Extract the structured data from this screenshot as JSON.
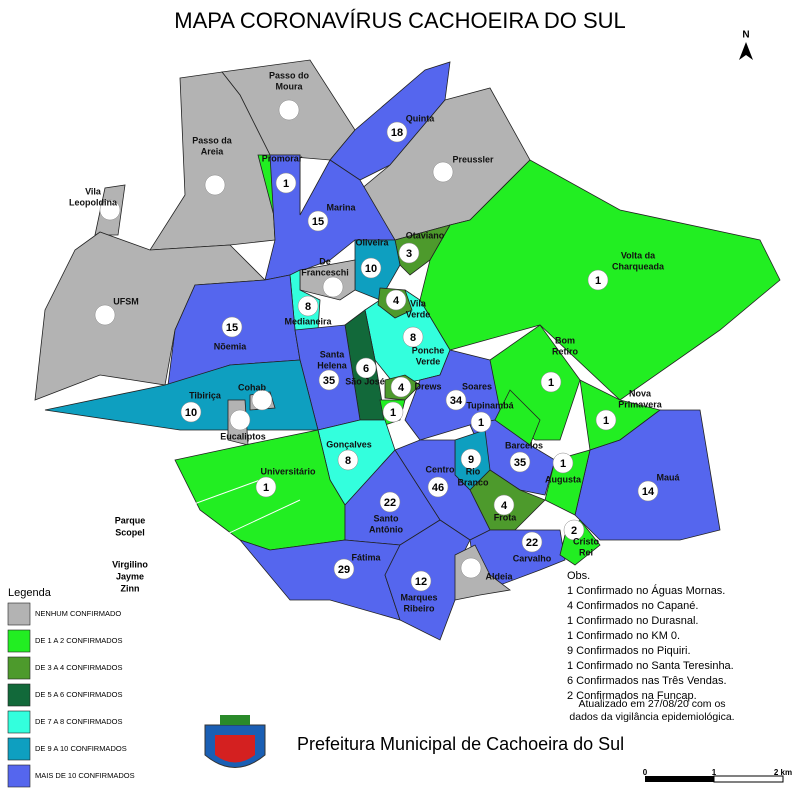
{
  "title": "MAPA CORONAVÍRUS CACHOEIRA DO SUL",
  "north": "N",
  "neighborhoods": [
    {
      "name": [
        "Passo do",
        "Moura"
      ]
    },
    {
      "name": [
        "Passo da",
        "Areia"
      ]
    },
    {
      "name": [
        "Promorar"
      ],
      "count": 1
    },
    {
      "name": [
        "Vila",
        "Leopoldina"
      ]
    },
    {
      "name": [
        "Quinta"
      ],
      "count": 18
    },
    {
      "name": [
        "Preussler"
      ]
    },
    {
      "name": [
        "Marina"
      ],
      "count": 15
    },
    {
      "name": [
        "Oliveira"
      ],
      "count": 10
    },
    {
      "name": [
        "Otaviano"
      ],
      "count": 3
    },
    {
      "name": [
        "Volta da",
        "Charqueada"
      ],
      "count": 1
    },
    {
      "name": [
        "De",
        "Franceschi"
      ]
    },
    {
      "name": [
        "UFSM"
      ]
    },
    {
      "name": [
        "Medianeira"
      ],
      "count": 8
    },
    {
      "name": [
        "Vila",
        "Verde"
      ],
      "count": 4
    },
    {
      "name": [
        "Nõemia"
      ],
      "count": 15
    },
    {
      "name": [
        "Ponche",
        "Verde"
      ],
      "count": 8
    },
    {
      "name": [
        "Santa",
        "Helena"
      ],
      "count": 35
    },
    {
      "name": [
        "São José"
      ],
      "count": 6
    },
    {
      "name": [
        "Bom",
        "Retiro"
      ],
      "count": 1
    },
    {
      "name": [
        "Drews"
      ],
      "count": 4
    },
    {
      "name": null,
      "count": 1
    },
    {
      "name": [
        "Cohab"
      ]
    },
    {
      "name": [
        "Tibiriça"
      ],
      "count": 10
    },
    {
      "name": [
        "Soares"
      ],
      "count": 34
    },
    {
      "name": [
        "Nova",
        "Primavera"
      ],
      "count": 1
    },
    {
      "name": [
        "Tupinambá"
      ],
      "count": 1
    },
    {
      "name": [
        "Eucaliptos"
      ]
    },
    {
      "name": [
        "Gonçalves"
      ],
      "count": 8
    },
    {
      "name": [
        "Barcelos"
      ],
      "count": 35
    },
    {
      "name": [
        "Rio",
        "Branco"
      ],
      "count": 9
    },
    {
      "name": [
        "Centro"
      ],
      "count": 46
    },
    {
      "name": [
        "Universitário"
      ],
      "count": 1
    },
    {
      "name": [
        "Augusta"
      ],
      "count": 1
    },
    {
      "name": [
        "Mauá"
      ],
      "count": 14
    },
    {
      "name": [
        "Frota"
      ],
      "count": 4
    },
    {
      "name": [
        "Santo",
        "Antônio"
      ],
      "count": 22
    },
    {
      "name": [
        "Carvalho"
      ],
      "count": 22
    },
    {
      "name": [
        "Cristo",
        "Rei"
      ],
      "count": 2
    },
    {
      "name": [
        "Fátima"
      ],
      "count": 29
    },
    {
      "name": [
        "Marques",
        "Ribeiro"
      ],
      "count": 12
    },
    {
      "name": [
        "Aldeia"
      ]
    }
  ],
  "outside_labels": [
    {
      "name": [
        "Parque",
        "Scopel"
      ]
    },
    {
      "name": [
        "Virgilino",
        "Jayme",
        "Zinn"
      ]
    }
  ],
  "legend": {
    "title": "Legenda",
    "items": [
      {
        "label": "NENHUM CONFIRMADO",
        "color": "#b3b3b3"
      },
      {
        "label": "DE 1 A 2 CONFIRMADOS",
        "color": "#22ee22"
      },
      {
        "label": "DE 3 A 4 CONFIRMADOS",
        "color": "#4d9a2c"
      },
      {
        "label": "DE 5 A 6 CONFIRMADOS",
        "color": "#12693a"
      },
      {
        "label": "DE 7 A 8 CONFIRMADOS",
        "color": "#33ffdd"
      },
      {
        "label": "DE 9 A 10 CONFIRMADOS",
        "color": "#0e9fc0"
      },
      {
        "label": "MAIS DE 10 CONFIRMADOS",
        "color": "#5566ee"
      }
    ]
  },
  "obs": {
    "title": "Obs.",
    "lines": [
      "1 Confirmado no Águas Mornas.",
      "4 Confirmados no Capané.",
      "1 Confirmado no Durasnal.",
      "1 Confirmado no KM 0.",
      "9 Confirmados no Piquiri.",
      "1 Confirmado no Santa Teresinha.",
      "6 Confirmados nas Três Vendas.",
      "2 Confirmados na Funcap."
    ]
  },
  "updated": [
    "Atualizado em 27/08/20 com os",
    "dados da vigilância epidemiológica."
  ],
  "footer": "Prefeitura Municipal de Cachoeira do Sul",
  "scale": [
    "0",
    "1",
    "2 km"
  ]
}
